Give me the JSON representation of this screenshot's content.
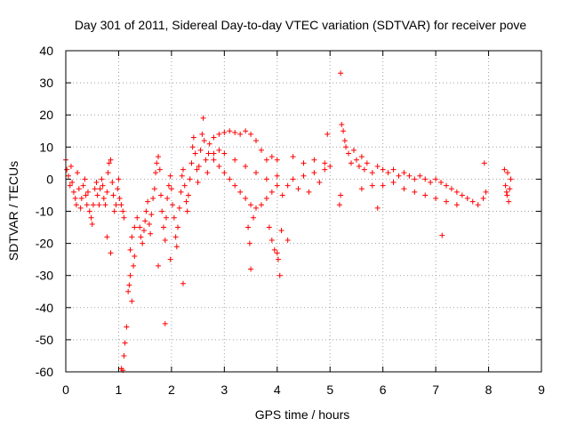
{
  "chart_data": {
    "type": "scatter",
    "title": "Day 301 of 2011, Sidereal Day-to-day VTEC variation (SDTVAR) for receiver pove",
    "xlabel": "GPS time / hours",
    "ylabel": "SDTVAR / TECUs",
    "xlim": [
      0,
      9
    ],
    "ylim": [
      -60,
      40
    ],
    "x_ticks": [
      "0",
      "1",
      "2",
      "3",
      "4",
      "5",
      "6",
      "7",
      "8",
      "9"
    ],
    "y_ticks": [
      "40",
      "30",
      "20",
      "10",
      "0",
      "-10",
      "-20",
      "-30",
      "-40",
      "-50",
      "-60"
    ],
    "grid": true,
    "marker": "+",
    "series_color": "#ff0000",
    "series": [
      {
        "name": "SDTVAR",
        "points": [
          [
            0.0,
            6.0
          ],
          [
            0.02,
            3.0
          ],
          [
            0.05,
            1.0
          ],
          [
            0.08,
            -2.0
          ],
          [
            0.1,
            4.0
          ],
          [
            0.12,
            -1.0
          ],
          [
            0.15,
            -4.0
          ],
          [
            0.18,
            -6.0
          ],
          [
            0.2,
            -8.0
          ],
          [
            0.22,
            2.0
          ],
          [
            0.25,
            -3.0
          ],
          [
            0.28,
            -9.0
          ],
          [
            0.3,
            -6.0
          ],
          [
            0.33,
            -2.0
          ],
          [
            0.36,
            0.0
          ],
          [
            0.38,
            -5.0
          ],
          [
            0.4,
            -8.0
          ],
          [
            0.42,
            -4.0
          ],
          [
            0.45,
            -10.0
          ],
          [
            0.48,
            -12.0
          ],
          [
            0.5,
            -14.0
          ],
          [
            0.52,
            -8.0
          ],
          [
            0.55,
            -3.0
          ],
          [
            0.58,
            -1.0
          ],
          [
            0.6,
            -5.0
          ],
          [
            0.63,
            -8.0
          ],
          [
            0.65,
            -3.0
          ],
          [
            0.68,
            0.0
          ],
          [
            0.7,
            -2.0
          ],
          [
            0.72,
            -6.0
          ],
          [
            0.75,
            -8.0
          ],
          [
            0.78,
            -4.0
          ],
          [
            0.8,
            2.0
          ],
          [
            0.82,
            5.0
          ],
          [
            0.85,
            6.0
          ],
          [
            0.88,
            -1.0
          ],
          [
            0.9,
            -5.0
          ],
          [
            0.92,
            -10.0
          ],
          [
            0.95,
            -8.0
          ],
          [
            0.98,
            -3.0
          ],
          [
            1.0,
            0.0
          ],
          [
            1.02,
            -6.0
          ],
          [
            1.05,
            -8.0
          ],
          [
            1.08,
            -10.0
          ],
          [
            1.1,
            -12.0
          ],
          [
            0.78,
            -18.0
          ],
          [
            0.85,
            -23.0
          ],
          [
            1.05,
            -59.0
          ],
          [
            1.08,
            -59.5
          ],
          [
            1.1,
            -55.0
          ],
          [
            1.12,
            -51.0
          ],
          [
            1.15,
            -46.0
          ],
          [
            1.18,
            -35.0
          ],
          [
            1.2,
            -33.0
          ],
          [
            1.22,
            -30.0
          ],
          [
            1.25,
            -38.0
          ],
          [
            1.28,
            -27.0
          ],
          [
            1.3,
            -24.0
          ],
          [
            1.22,
            -22.0
          ],
          [
            1.25,
            -18.0
          ],
          [
            1.3,
            -15.0
          ],
          [
            1.35,
            -12.0
          ],
          [
            1.4,
            -15.0
          ],
          [
            1.42,
            -18.0
          ],
          [
            1.45,
            -20.0
          ],
          [
            1.48,
            -16.0
          ],
          [
            1.5,
            -13.0
          ],
          [
            1.52,
            -10.0
          ],
          [
            1.55,
            -7.0
          ],
          [
            1.58,
            -14.0
          ],
          [
            1.6,
            -17.0
          ],
          [
            1.62,
            -11.0
          ],
          [
            1.65,
            -6.0
          ],
          [
            1.68,
            -3.0
          ],
          [
            1.7,
            2.0
          ],
          [
            1.72,
            5.0
          ],
          [
            1.75,
            7.0
          ],
          [
            1.78,
            3.0
          ],
          [
            1.8,
            -5.0
          ],
          [
            1.82,
            -10.0
          ],
          [
            1.85,
            -15.0
          ],
          [
            1.88,
            -19.0
          ],
          [
            1.9,
            -12.0
          ],
          [
            1.92,
            -6.0
          ],
          [
            1.95,
            -2.0
          ],
          [
            1.98,
            1.0
          ],
          [
            2.0,
            -3.0
          ],
          [
            2.02,
            -8.0
          ],
          [
            2.05,
            -12.0
          ],
          [
            2.08,
            -18.0
          ],
          [
            2.1,
            -21.0
          ],
          [
            2.12,
            -15.0
          ],
          [
            2.15,
            -9.0
          ],
          [
            2.18,
            -4.0
          ],
          [
            2.2,
            1.0
          ],
          [
            2.22,
            3.0
          ],
          [
            2.25,
            -2.0
          ],
          [
            2.28,
            -7.0
          ],
          [
            2.3,
            -10.0
          ],
          [
            2.32,
            -5.0
          ],
          [
            2.35,
            0.0
          ],
          [
            2.38,
            5.0
          ],
          [
            2.4,
            10.0
          ],
          [
            2.42,
            13.0
          ],
          [
            2.45,
            8.0
          ],
          [
            2.48,
            3.0
          ],
          [
            2.5,
            -1.0
          ],
          [
            2.52,
            4.0
          ],
          [
            2.55,
            9.0
          ],
          [
            2.58,
            14.0
          ],
          [
            2.6,
            19.0
          ],
          [
            2.62,
            12.0
          ],
          [
            2.65,
            6.0
          ],
          [
            2.68,
            2.0
          ],
          [
            2.7,
            8.0
          ],
          [
            2.72,
            11.0
          ],
          [
            1.75,
            -27.0
          ],
          [
            1.88,
            -45.0
          ],
          [
            2.22,
            -32.5
          ],
          [
            1.98,
            -25.0
          ],
          [
            2.8,
            13.0
          ],
          [
            2.9,
            14.0
          ],
          [
            3.0,
            14.5
          ],
          [
            3.1,
            15.0
          ],
          [
            3.2,
            14.5
          ],
          [
            3.3,
            14.0
          ],
          [
            3.4,
            15.0
          ],
          [
            3.5,
            14.0
          ],
          [
            3.6,
            12.0
          ],
          [
            3.7,
            9.0
          ],
          [
            3.8,
            6.0
          ],
          [
            3.9,
            7.0
          ],
          [
            4.0,
            6.0
          ],
          [
            2.8,
            6.0
          ],
          [
            2.9,
            4.0
          ],
          [
            3.0,
            2.0
          ],
          [
            3.1,
            0.0
          ],
          [
            3.2,
            -2.0
          ],
          [
            3.3,
            -4.0
          ],
          [
            3.4,
            -6.0
          ],
          [
            3.5,
            -8.0
          ],
          [
            3.6,
            -9.0
          ],
          [
            3.7,
            -8.0
          ],
          [
            3.8,
            -6.0
          ],
          [
            3.9,
            -4.0
          ],
          [
            4.0,
            -2.0
          ],
          [
            2.8,
            8.0
          ],
          [
            2.9,
            9.0
          ],
          [
            3.0,
            8.0
          ],
          [
            3.2,
            6.0
          ],
          [
            3.4,
            4.0
          ],
          [
            3.6,
            2.0
          ],
          [
            3.8,
            0.0
          ],
          [
            4.0,
            1.0
          ],
          [
            3.45,
            -15.0
          ],
          [
            3.48,
            -20.0
          ],
          [
            3.5,
            -28.0
          ],
          [
            3.55,
            -12.0
          ],
          [
            3.85,
            -15.0
          ],
          [
            3.9,
            -19.0
          ],
          [
            3.95,
            -22.0
          ],
          [
            4.0,
            -23.0
          ],
          [
            4.05,
            -30.0
          ],
          [
            4.02,
            -25.0
          ],
          [
            4.08,
            -16.0
          ],
          [
            4.2,
            -19.0
          ],
          [
            4.1,
            -5.0
          ],
          [
            4.2,
            -2.0
          ],
          [
            4.3,
            0.0
          ],
          [
            4.4,
            -3.0
          ],
          [
            4.5,
            1.0
          ],
          [
            4.6,
            -4.0
          ],
          [
            4.7,
            2.0
          ],
          [
            4.8,
            -1.0
          ],
          [
            4.9,
            3.0
          ],
          [
            4.95,
            14.0
          ],
          [
            5.0,
            4.0
          ],
          [
            4.3,
            7.0
          ],
          [
            4.5,
            5.0
          ],
          [
            4.7,
            6.0
          ],
          [
            4.9,
            5.0
          ],
          [
            5.2,
            33.0
          ],
          [
            5.2,
            -5.0
          ],
          [
            5.18,
            -8.0
          ],
          [
            5.22,
            17.0
          ],
          [
            5.25,
            15.0
          ],
          [
            5.28,
            12.0
          ],
          [
            5.3,
            10.0
          ],
          [
            5.35,
            8.0
          ],
          [
            5.4,
            5.0
          ],
          [
            5.45,
            9.0
          ],
          [
            5.5,
            6.0
          ],
          [
            5.55,
            4.0
          ],
          [
            5.6,
            7.0
          ],
          [
            5.65,
            3.0
          ],
          [
            5.7,
            5.0
          ],
          [
            5.8,
            2.0
          ],
          [
            5.9,
            4.0
          ],
          [
            5.9,
            -9.0
          ],
          [
            6.0,
            3.0
          ],
          [
            6.1,
            2.0
          ],
          [
            6.2,
            3.0
          ],
          [
            6.3,
            1.0
          ],
          [
            6.4,
            2.0
          ],
          [
            6.5,
            1.0
          ],
          [
            6.6,
            0.0
          ],
          [
            6.7,
            1.0
          ],
          [
            6.8,
            0.0
          ],
          [
            6.9,
            -1.0
          ],
          [
            7.0,
            0.0
          ],
          [
            7.1,
            -1.0
          ],
          [
            7.12,
            -17.5
          ],
          [
            7.2,
            -2.0
          ],
          [
            7.3,
            -3.0
          ],
          [
            7.4,
            -4.0
          ],
          [
            7.5,
            -5.0
          ],
          [
            7.6,
            -6.0
          ],
          [
            7.7,
            -7.0
          ],
          [
            7.8,
            -8.0
          ],
          [
            7.9,
            -6.0
          ],
          [
            7.92,
            5.0
          ],
          [
            7.95,
            -4.0
          ],
          [
            6.0,
            -2.0
          ],
          [
            6.2,
            -1.0
          ],
          [
            6.4,
            -3.0
          ],
          [
            6.6,
            -4.0
          ],
          [
            6.8,
            -5.0
          ],
          [
            7.0,
            -6.0
          ],
          [
            7.2,
            -7.0
          ],
          [
            7.4,
            -8.0
          ],
          [
            5.6,
            -3.0
          ],
          [
            5.8,
            -2.0
          ],
          [
            8.3,
            3.0
          ],
          [
            8.32,
            -2.0
          ],
          [
            8.35,
            -5.0
          ],
          [
            8.38,
            -7.0
          ],
          [
            8.4,
            -3.0
          ],
          [
            8.42,
            0.0
          ],
          [
            8.36,
            2.0
          ],
          [
            8.34,
            -4.0
          ]
        ]
      }
    ]
  }
}
